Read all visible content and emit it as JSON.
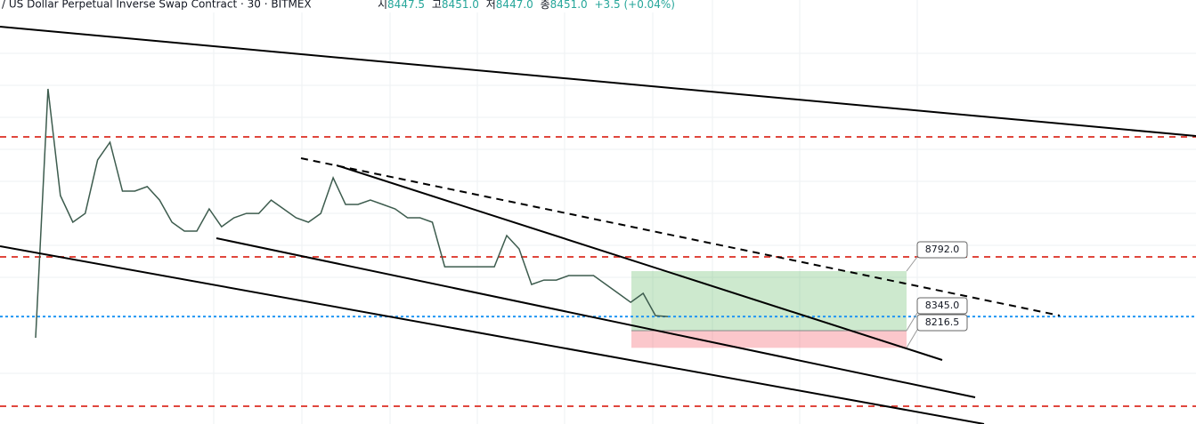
{
  "header": {
    "title": "/ US Dollar Perpetual Inverse Swap Contract · 30 · BITMEX",
    "ohlc": [
      {
        "label": "시",
        "value": "8447.5"
      },
      {
        "label": "고",
        "value": "8451.0"
      },
      {
        "label": "저",
        "value": "8447.0"
      },
      {
        "label": "종",
        "value": "8451.0"
      }
    ],
    "change": "+3.5 (+0.04%)"
  },
  "chart_data": {
    "type": "line",
    "color": "#3d5c4e",
    "categories": [
      null,
      null,
      null,
      null,
      null,
      null,
      null,
      null,
      null,
      null,
      null,
      null,
      null,
      null,
      null,
      null,
      null,
      null,
      null,
      null,
      null,
      null,
      null,
      null,
      null,
      null,
      null,
      null,
      null,
      null,
      null,
      null,
      null,
      null,
      null,
      null,
      null,
      null,
      null,
      null,
      null,
      null,
      null,
      null,
      null,
      null,
      null,
      null,
      null,
      null,
      null,
      null
    ],
    "values": [
      8292,
      10159,
      9359,
      9159,
      9225,
      9626,
      9759,
      9392,
      9392,
      9426,
      9325,
      9159,
      9092,
      9092,
      9259,
      9125,
      9192,
      9225,
      9225,
      9325,
      9259,
      9192,
      9159,
      9225,
      9492,
      9292,
      9292,
      9325,
      9292,
      9259,
      9192,
      9192,
      9159,
      8825,
      8825,
      8825,
      8825,
      8825,
      9059,
      8959,
      8692,
      8725,
      8725,
      8759,
      8759,
      8759,
      8692,
      8625,
      8558,
      8625,
      8458,
      8451
    ],
    "ylim": [
      7645,
      10826
    ],
    "levels": [
      9799,
      8899,
      7778
    ],
    "current": 8451,
    "position": {
      "target": {
        "value": 8792,
        "label": "8792.0"
      },
      "entry": {
        "value": 8345,
        "label": "8345.0"
      },
      "stop": {
        "value": 8216.5,
        "label": "8216.5"
      }
    }
  }
}
